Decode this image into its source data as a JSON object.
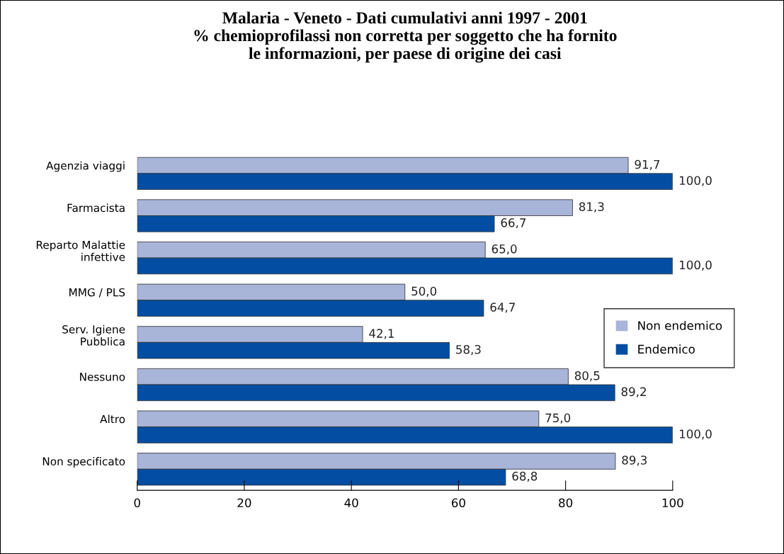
{
  "chart_data": {
    "type": "bar",
    "orientation": "horizontal",
    "title": "Malaria - Veneto - Dati cumulativi anni 1997 - 2001\n% chemioprofilassi non corretta per soggetto che ha fornito\nle informazioni, per paese di origine dei casi",
    "categories": [
      "Agenzia viaggi",
      "Farmacista",
      "Reparto Malattie\ninfettive",
      "MMG / PLS",
      "Serv. Igiene\nPubblica",
      "Nessuno",
      "Altro",
      "Non specificato"
    ],
    "series": [
      {
        "name": "Non endemico",
        "color": "#a9b4d9",
        "values": [
          91.7,
          81.3,
          65.0,
          50.0,
          42.1,
          80.5,
          75.0,
          89.3
        ],
        "value_labels": [
          "91,7",
          "81,3",
          "65,0",
          "50,0",
          "42,1",
          "80,5",
          "75,0",
          "89,3"
        ]
      },
      {
        "name": "Endemico",
        "color": "#034ea2",
        "values": [
          100.0,
          66.7,
          100.0,
          64.7,
          58.3,
          89.2,
          100.0,
          68.8
        ],
        "value_labels": [
          "100,0",
          "66,7",
          "100,0",
          "64,7",
          "58,3",
          "89,2",
          "100,0",
          "68,8"
        ]
      }
    ],
    "xlim": [
      0,
      100
    ],
    "xticks": [
      0,
      20,
      40,
      60,
      80,
      100
    ],
    "grid": false,
    "legend": "right"
  }
}
